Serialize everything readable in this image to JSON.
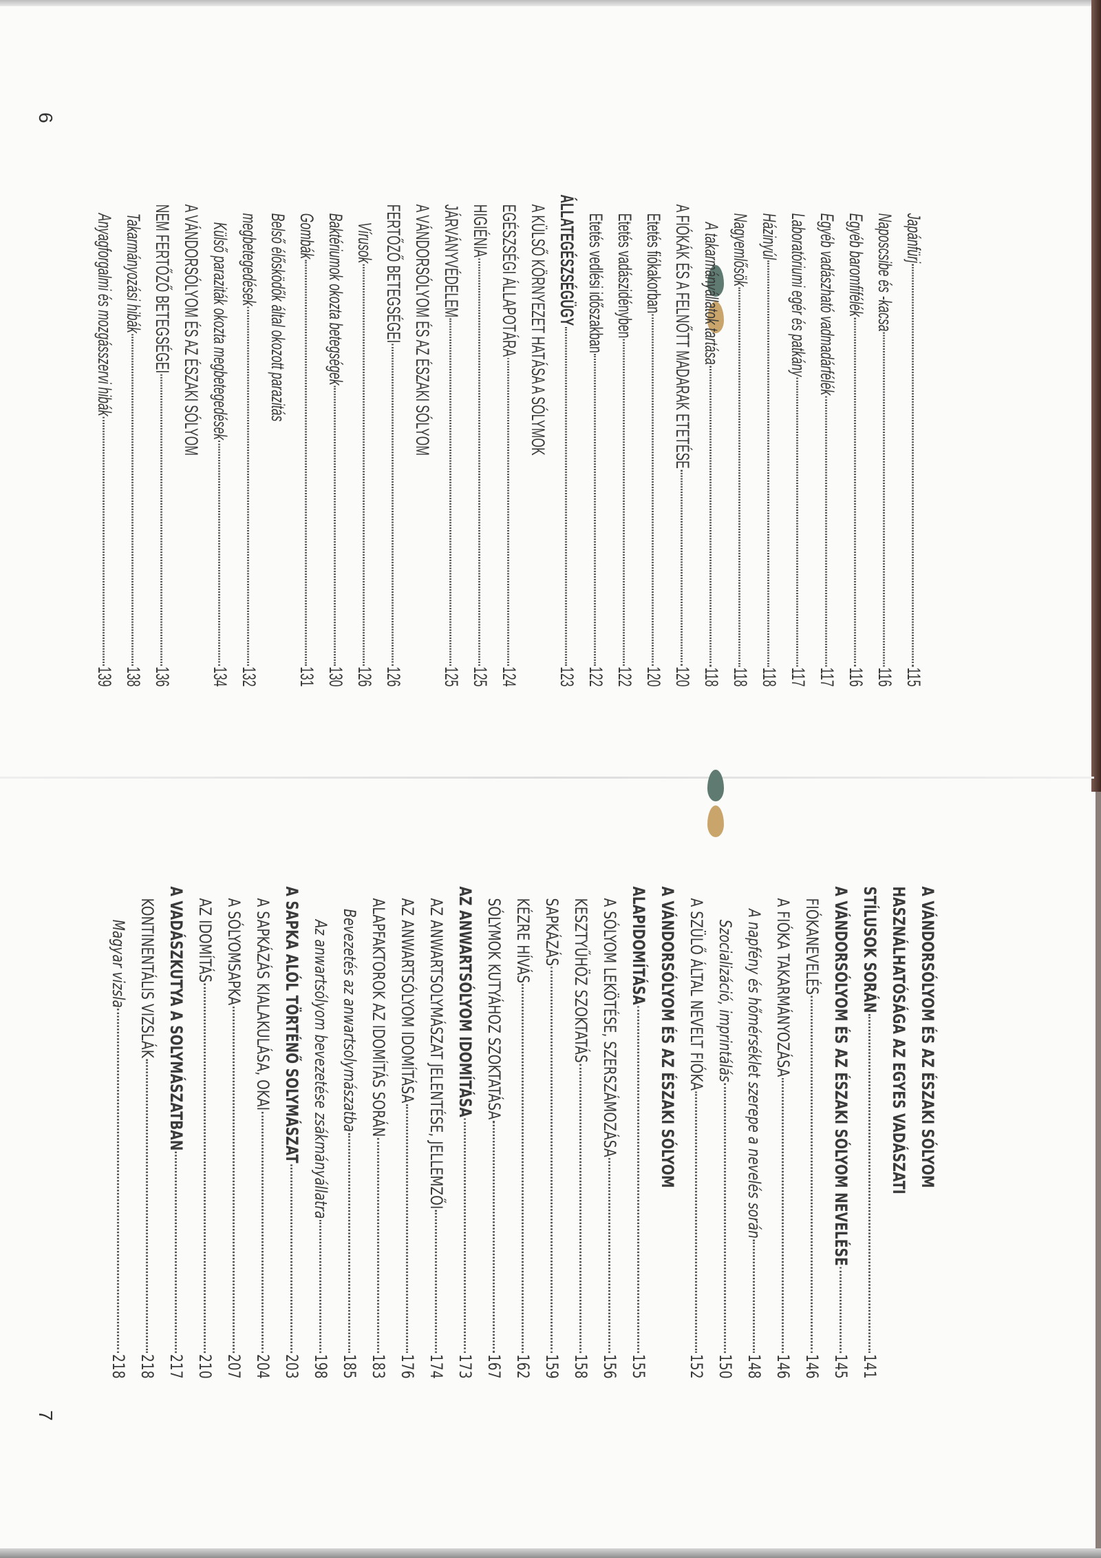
{
  "colors": {
    "leaf_green": "#5f7a70",
    "leaf_tan": "#c9a56b",
    "text": "#3a3a3a"
  },
  "pages": [
    {
      "number": "6",
      "entries": [
        {
          "lines": [
            "Japánfürj"
          ],
          "page": "115",
          "style": "i",
          "level": 2
        },
        {
          "lines": [
            "Naposcsibe és -kacsa"
          ],
          "page": "116",
          "style": "i",
          "level": 2
        },
        {
          "lines": [
            "Egyéb baromfifélék"
          ],
          "page": "116",
          "style": "i",
          "level": 2
        },
        {
          "lines": [
            "Egyéb vadászható vadmadárfélék"
          ],
          "page": "117",
          "style": "i",
          "level": 2
        },
        {
          "lines": [
            "Laboratóriumi egér és patkány"
          ],
          "page": "117",
          "style": "i",
          "level": 2
        },
        {
          "lines": [
            "Házinyúl"
          ],
          "page": "118",
          "style": "i",
          "level": 2
        },
        {
          "lines": [
            "Nagyemlősök"
          ],
          "page": "118",
          "style": "i",
          "level": 2
        },
        {
          "lines": [
            "A takarmányállatok tartása"
          ],
          "page": "118",
          "style": "i",
          "level": 3
        },
        {
          "lines": [
            "A FIÓKÁK ÉS A FELNŐTT MADARAK ETETÉSE"
          ],
          "page": "120",
          "style": "c",
          "level": 1
        },
        {
          "lines": [
            "Etetés fiókakorban"
          ],
          "page": "120",
          "style": "c",
          "level": 2
        },
        {
          "lines": [
            "Etetés vadászidényben"
          ],
          "page": "122",
          "style": "c",
          "level": 2
        },
        {
          "lines": [
            "Etetés vedlési időszakban"
          ],
          "page": "122",
          "style": "c",
          "level": 2
        },
        {
          "lines": [
            "ÁLLATEGÉSZSÉGÜGY"
          ],
          "page": "123",
          "style": "b",
          "level": 0
        },
        {
          "lines": [
            "A KÜLSŐ KÖRNYEZET HATÁSA A SÓLYMOK",
            "EGÉSZSÉGI ÁLLAPOTÁRA"
          ],
          "page": "124",
          "style": "c",
          "level": 1
        },
        {
          "lines": [
            "HIGIÉNIA"
          ],
          "page": "125",
          "style": "c",
          "level": 1
        },
        {
          "lines": [
            "JÁRVÁNYVÉDELEM"
          ],
          "page": "125",
          "style": "c",
          "level": 1
        },
        {
          "lines": [
            "A VÁNDORSÓLYOM ÉS AZ ÉSZAKI SÓLYOM",
            "FERTŐZŐ BETEGSÉGEI"
          ],
          "page": "126",
          "style": "c",
          "level": 1
        },
        {
          "lines": [
            "Vírusok"
          ],
          "page": "126",
          "style": "i",
          "level": 3
        },
        {
          "lines": [
            "Baktériumok okozta betegségek"
          ],
          "page": "130",
          "style": "i",
          "level": 2
        },
        {
          "lines": [
            "Gombák"
          ],
          "page": "131",
          "style": "i",
          "level": 2
        },
        {
          "lines": [
            "Belső élősködők által okozott parazitás",
            "megbetegedések"
          ],
          "page": "132",
          "style": "i",
          "level": 2
        },
        {
          "lines": [
            "Külső paraziták okozta megbetegedések"
          ],
          "page": "134",
          "style": "i",
          "level": 3
        },
        {
          "lines": [
            "A VÁNDORSÓLYOM ÉS AZ ÉSZAKI SÓLYOM",
            "NEM FERTŐZŐ BETEGSÉGEI"
          ],
          "page": "136",
          "style": "c",
          "level": 1
        },
        {
          "lines": [
            "Takarmányozási hibák"
          ],
          "page": "138",
          "style": "i",
          "level": 2
        },
        {
          "lines": [
            "Anyagforgalmi és mozgásszervi hibák"
          ],
          "page": "139",
          "style": "i",
          "level": 2
        }
      ]
    },
    {
      "number": "7",
      "entries": [
        {
          "lines": [
            "A VÁNDORSÓLYOM ÉS AZ ÉSZAKI SÓLYOM",
            "HASZNÁLHATÓSÁGA AZ EGYES VADÁSZATI",
            "STÍLUSOK SORÁN"
          ],
          "page": "141",
          "style": "b",
          "level": 0
        },
        {
          "lines": [
            "A VÁNDORSÓLYOM ÉS AZ ÉSZAKI SÓLYOM NEVELÉSE"
          ],
          "page": "145",
          "style": "b",
          "level": 0
        },
        {
          "lines": [
            "FIÓKANEVELÉS"
          ],
          "page": "146",
          "style": "c",
          "level": 1
        },
        {
          "lines": [
            "A FIÓKA TAKARMÁNYOZÁSA"
          ],
          "page": "146",
          "style": "c",
          "level": 1
        },
        {
          "lines": [
            "A napfény és hőmérséklet szerepe a nevelés során"
          ],
          "page": "148",
          "style": "i",
          "level": 2
        },
        {
          "lines": [
            "Szocializáció, imprintálás"
          ],
          "page": "150",
          "style": "i",
          "level": 3
        },
        {
          "lines": [
            "A SZÜLŐ ÁLTAL NEVELT FIÓKA"
          ],
          "page": "152",
          "style": "c",
          "level": 1
        },
        {
          "lines": [
            "A VÁNDORSÓLYOM ÉS AZ ÉSZAKI SÓLYOM",
            "ALAPIDOMÍTÁSA"
          ],
          "page": "155",
          "style": "b",
          "level": 0
        },
        {
          "lines": [
            "A SÓLYOM LEKÖTÉSE, SZERSZÁMOZÁSA"
          ],
          "page": "156",
          "style": "c",
          "level": 1
        },
        {
          "lines": [
            "KESZTYŰHÖZ SZOKTATÁS"
          ],
          "page": "158",
          "style": "c",
          "level": 1
        },
        {
          "lines": [
            "SAPKÁZÁS"
          ],
          "page": "159",
          "style": "c",
          "level": 1
        },
        {
          "lines": [
            "KÉZRE HÍVÁS"
          ],
          "page": "162",
          "style": "c",
          "level": 1
        },
        {
          "lines": [
            "SÓLYMOK KUTYÁHOZ SZOKTATÁSA"
          ],
          "page": "167",
          "style": "c",
          "level": 1
        },
        {
          "lines": [
            "AZ ANWARTSÓLYOM IDOMÍTÁSA"
          ],
          "page": "173",
          "style": "b",
          "level": 0
        },
        {
          "lines": [
            "AZ ANWARTSOLYMÁSZAT JELENTÉSE, JELLEMZŐI"
          ],
          "page": "174",
          "style": "c",
          "level": 1
        },
        {
          "lines": [
            "AZ ANWARTSÓLYOM IDOMÍTÁSA"
          ],
          "page": "176",
          "style": "c",
          "level": 1
        },
        {
          "lines": [
            "ALAPFAKTOROK AZ IDOMÍTÁS SORÁN"
          ],
          "page": "183",
          "style": "c",
          "level": 1
        },
        {
          "lines": [
            "Bevezetés az anwartsolymászatba"
          ],
          "page": "185",
          "style": "i",
          "level": 2
        },
        {
          "lines": [
            "Az anwartsólyom bevezetése zsákmányállatra"
          ],
          "page": "198",
          "style": "i",
          "level": 3
        },
        {
          "lines": [
            "A SAPKA ALÓL TÖRTÉNŐ SOLYMÁSZAT"
          ],
          "page": "203",
          "style": "b",
          "level": 0
        },
        {
          "lines": [
            "A SAPKÁZÁS KIALAKULÁSA, OKAI"
          ],
          "page": "204",
          "style": "c",
          "level": 1
        },
        {
          "lines": [
            "A SÓLYOMSAPKA"
          ],
          "page": "207",
          "style": "c",
          "level": 1
        },
        {
          "lines": [
            "AZ IDOMÍTÁS"
          ],
          "page": "210",
          "style": "c",
          "level": 1
        },
        {
          "lines": [
            "A VADÁSZKUTYA A SOLYMÁSZATBAN"
          ],
          "page": "217",
          "style": "b",
          "level": 0
        },
        {
          "lines": [
            "KONTINENTÁLIS VIZSLÁK"
          ],
          "page": "218",
          "style": "c",
          "level": 1
        },
        {
          "lines": [
            "Magyar vizsla"
          ],
          "page": "218",
          "style": "i",
          "level": 3
        }
      ]
    }
  ]
}
